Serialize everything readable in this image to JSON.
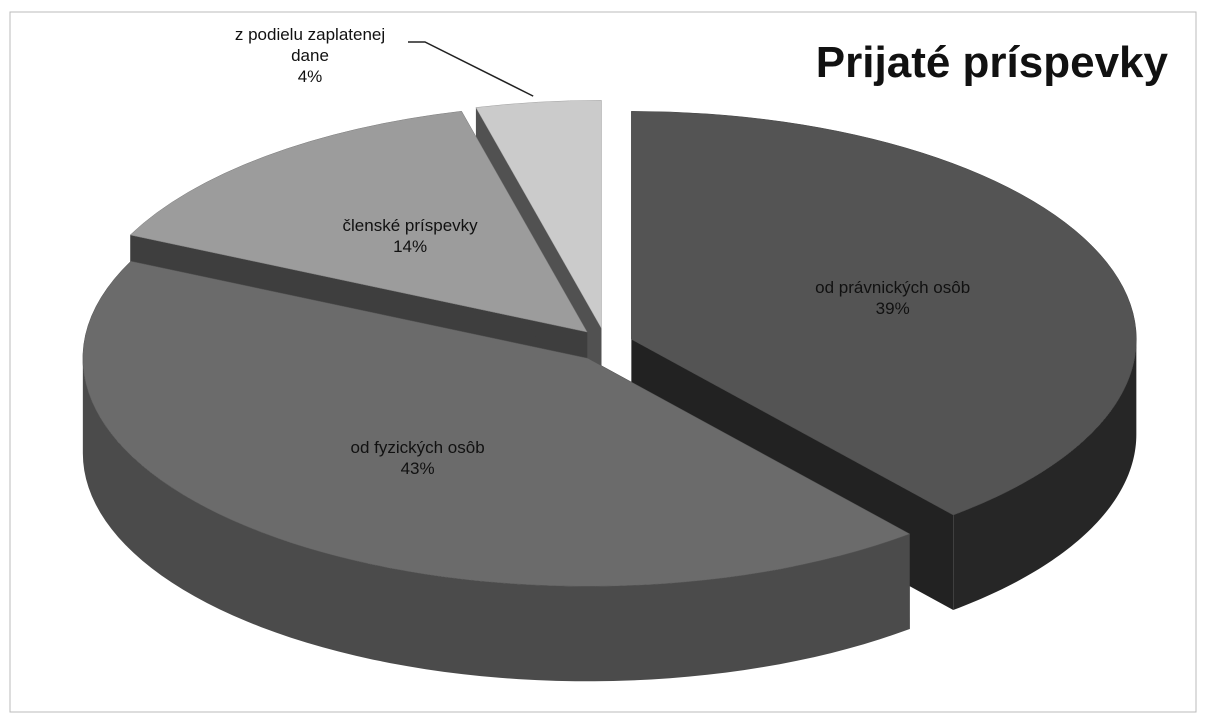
{
  "chart_data": {
    "type": "pie",
    "title": "Prijaté príspevky",
    "categories": [
      "od právnických osôb",
      "od fyzických osôb",
      "členské príspevky",
      "z podielu zaplatenej dane"
    ],
    "values": [
      39,
      43,
      14,
      4
    ],
    "value_labels": [
      "39%",
      "43%",
      "14%",
      "4%"
    ],
    "colors": [
      "#545454",
      "#6b6b6b",
      "#9c9c9c",
      "#cbcbcb"
    ]
  }
}
